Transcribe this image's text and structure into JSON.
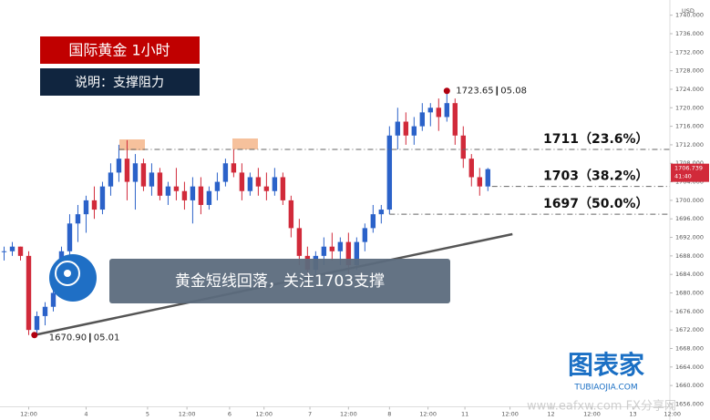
{
  "chart_data": {
    "type": "candlestick",
    "title": "国际黄金  1小时",
    "subtitle": "说明：支撑阻力",
    "caption": "黄金短线回落，关注1703支撑",
    "currency": "USD",
    "up_color": "#2b62c9",
    "down_color": "#d12a3a",
    "x": [
      0,
      1,
      2,
      3,
      4,
      5,
      6,
      7,
      8,
      9,
      10,
      11,
      12,
      13,
      14,
      15,
      16,
      17,
      18,
      19,
      20,
      21,
      22,
      23,
      24,
      25,
      26,
      27,
      28,
      29,
      30,
      31,
      32,
      33,
      34,
      35,
      36,
      37,
      38,
      39,
      40,
      41,
      42,
      43,
      44,
      45,
      46,
      47,
      48,
      49,
      50,
      51,
      52,
      53,
      54,
      55,
      56,
      57,
      58,
      59
    ],
    "open": [
      1689,
      1689,
      1690,
      1688,
      1672,
      1675,
      1677,
      1680,
      1689,
      1695,
      1697,
      1700,
      1698,
      1703,
      1706,
      1709,
      1704,
      1708,
      1703,
      1706,
      1701,
      1703,
      1702,
      1700,
      1703,
      1699,
      1702,
      1704,
      1708,
      1706,
      1702,
      1705,
      1703,
      1702,
      1705,
      1700,
      1694,
      1688,
      1685,
      1688,
      1690,
      1689,
      1691,
      1686,
      1691,
      1694,
      1697,
      1698,
      1714,
      1717,
      1714,
      1716,
      1719,
      1720,
      1718,
      1721,
      1714,
      1709,
      1705,
      1703
    ],
    "high": [
      1690,
      1691,
      1690,
      1689,
      1676,
      1678,
      1681,
      1690,
      1697,
      1699,
      1701,
      1703,
      1704,
      1708,
      1712,
      1713,
      1710,
      1709,
      1708,
      1707,
      1704,
      1707,
      1704,
      1705,
      1705,
      1703,
      1706,
      1709,
      1711,
      1708,
      1706,
      1707,
      1706,
      1707,
      1706,
      1701,
      1696,
      1690,
      1689,
      1692,
      1693,
      1692,
      1693,
      1692,
      1695,
      1699,
      1699,
      1716,
      1720,
      1719,
      1718,
      1721,
      1721,
      1722,
      1723.65,
      1722,
      1716,
      1710,
      1707,
      1707
    ],
    "low": [
      1687,
      1688,
      1687,
      1670.9,
      1671,
      1673,
      1676,
      1679,
      1688,
      1691,
      1693,
      1696,
      1697,
      1701,
      1704,
      1700,
      1698,
      1702,
      1701,
      1700,
      1699,
      1700,
      1698,
      1695,
      1697,
      1698,
      1700,
      1703,
      1705,
      1700,
      1701,
      1701,
      1700,
      1701,
      1699,
      1692,
      1686,
      1683,
      1684,
      1686,
      1687,
      1686,
      1684,
      1685,
      1689,
      1693,
      1695,
      1697,
      1711,
      1712,
      1712,
      1715,
      1716,
      1715,
      1717,
      1712,
      1707,
      1703,
      1701,
      1702
    ],
    "close": [
      1689,
      1690,
      1688,
      1672,
      1675,
      1677,
      1680,
      1689,
      1695,
      1697,
      1700,
      1698,
      1703,
      1706,
      1709,
      1704,
      1708,
      1703,
      1706,
      1701,
      1703,
      1702,
      1700,
      1703,
      1699,
      1702,
      1704,
      1708,
      1706,
      1702,
      1705,
      1703,
      1702,
      1705,
      1700,
      1694,
      1688,
      1685,
      1688,
      1690,
      1689,
      1691,
      1686,
      1691,
      1694,
      1697,
      1698,
      1714,
      1717,
      1714,
      1716,
      1719,
      1720,
      1718,
      1721,
      1714,
      1709,
      1705,
      1703,
      1706.739
    ],
    "xlim": [
      -0.5,
      81.2
    ],
    "ylim": [
      1655.4,
      1742
    ],
    "xticks": [
      {
        "value": 3,
        "label": "12:00"
      },
      {
        "value": 10,
        "label": "4"
      },
      {
        "value": 17.5,
        "label": "5"
      },
      {
        "value": 22.3,
        "label": "12:00"
      },
      {
        "value": 27.5,
        "label": "6"
      },
      {
        "value": 31.7,
        "label": "12:00"
      },
      {
        "value": 37.3,
        "label": "7"
      },
      {
        "value": 42,
        "label": "12:00"
      },
      {
        "value": 47,
        "label": "8"
      },
      {
        "value": 51.7,
        "label": "12:00"
      },
      {
        "value": 56.2,
        "label": "11"
      },
      {
        "value": 61.7,
        "label": "12:00"
      },
      {
        "value": 66.7,
        "label": "12"
      },
      {
        "value": 71.7,
        "label": "12:00"
      },
      {
        "value": 76.7,
        "label": "13"
      },
      {
        "value": 81.5,
        "label": "12:00"
      }
    ],
    "yticks": [
      {
        "value": 1656,
        "label": "1656.000"
      },
      {
        "value": 1660,
        "label": "1660.000"
      },
      {
        "value": 1664,
        "label": "1664.000"
      },
      {
        "value": 1668,
        "label": "1668.000"
      },
      {
        "value": 1672,
        "label": "1672.000"
      },
      {
        "value": 1676,
        "label": "1676.000"
      },
      {
        "value": 1680,
        "label": "1680.000"
      },
      {
        "value": 1684,
        "label": "1684.000"
      },
      {
        "value": 1688,
        "label": "1688.000"
      },
      {
        "value": 1692,
        "label": "1692.000"
      },
      {
        "value": 1696,
        "label": "1696.000"
      },
      {
        "value": 1700,
        "label": "1700.000"
      },
      {
        "value": 1704,
        "label": "1704.000"
      },
      {
        "value": 1708,
        "label": "1708.000"
      },
      {
        "value": 1712,
        "label": "1712.000"
      },
      {
        "value": 1716,
        "label": "1716.000"
      },
      {
        "value": 1720,
        "label": "1720.000"
      },
      {
        "value": 1724,
        "label": "1724.000"
      },
      {
        "value": 1728,
        "label": "1728.000"
      },
      {
        "value": 1732,
        "label": "1732.000"
      },
      {
        "value": 1736,
        "label": "1736.000"
      },
      {
        "value": 1740,
        "label": "1740.000"
      }
    ],
    "last_price": {
      "value": 1706.739,
      "label": "1706.739",
      "countdown": "41:40"
    },
    "levels": [
      {
        "value": 1711,
        "label": "1711（23.6%）",
        "from_x": 14
      },
      {
        "value": 1703,
        "label": "1703（38.2%）",
        "from_x": 59.5
      },
      {
        "value": 1697,
        "label": "1697（50.0%）",
        "from_x": 47
      }
    ],
    "trendline": {
      "x": [
        3.7,
        62
      ],
      "y": [
        1670.9,
        1692.7
      ]
    },
    "extremes": [
      {
        "x": 54,
        "value": 1723.65,
        "label": "1723.65",
        "date": "05.08"
      },
      {
        "x": 3.7,
        "value": 1670.9,
        "label": "1670.90",
        "date": "05.01"
      }
    ],
    "logo": "图表家",
    "logo_sub": "TUBIAOJIA.COM",
    "watermark": "www.eafxw.com   FX分享网"
  }
}
